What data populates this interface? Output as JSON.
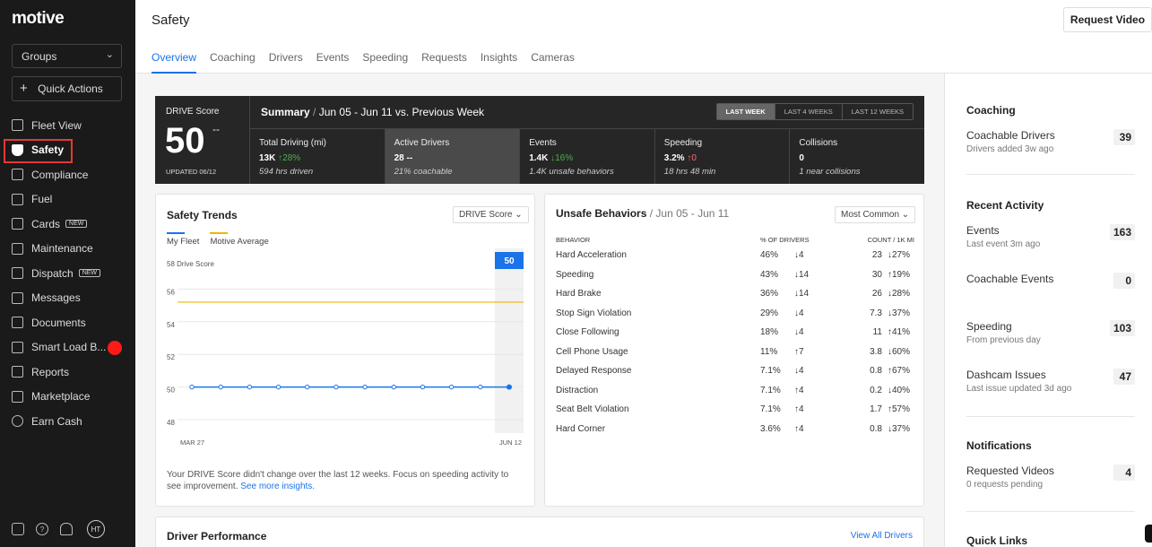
{
  "app": {
    "logo": "motive"
  },
  "sidebar": {
    "groups_label": "Groups",
    "quick_actions_label": "Quick Actions",
    "items": [
      {
        "label": "Fleet View",
        "icon": "map-icon"
      },
      {
        "label": "Safety",
        "icon": "shield-icon",
        "active": true
      },
      {
        "label": "Compliance",
        "icon": "document-icon"
      },
      {
        "label": "Fuel",
        "icon": "fuel-icon"
      },
      {
        "label": "Cards",
        "icon": "card-icon",
        "badge": "NEW"
      },
      {
        "label": "Maintenance",
        "icon": "wrench-icon"
      },
      {
        "label": "Dispatch",
        "icon": "location-pin-icon",
        "badge": "NEW"
      },
      {
        "label": "Messages",
        "icon": "chat-icon"
      },
      {
        "label": "Documents",
        "icon": "file-icon"
      },
      {
        "label": "Smart Load B...",
        "icon": "truck-icon",
        "dot": true
      },
      {
        "label": "Reports",
        "icon": "bar-chart-icon"
      },
      {
        "label": "Marketplace",
        "icon": "layers-icon"
      },
      {
        "label": "Earn Cash",
        "icon": "dollar-icon"
      }
    ],
    "footer": {
      "avatar_initials": "HT",
      "help_glyph": "?"
    }
  },
  "header": {
    "title": "Safety",
    "request_video_label": "Request Video",
    "tabs": [
      "Overview",
      "Coaching",
      "Drivers",
      "Events",
      "Speeding",
      "Requests",
      "Insights",
      "Cameras"
    ],
    "active_tab": "Overview"
  },
  "banner": {
    "score_label": "DRIVE Score",
    "score_value": "50",
    "score_change": "--",
    "updated": "UPDATED 06/12",
    "summary_title": "Summary",
    "summary_range": "Jun 05 - Jun 11 vs. Previous Week",
    "ranges": [
      "LAST WEEK",
      "LAST 4 WEEKS",
      "LAST 12 WEEKS"
    ],
    "metrics": [
      {
        "label": "Total Driving (mi)",
        "value": "13K",
        "delta": "↑28%",
        "sub": "594 hrs driven"
      },
      {
        "label": "Active Drivers",
        "value": "28",
        "delta": "--",
        "sub": "21% coachable"
      },
      {
        "label": "Events",
        "value": "1.4K",
        "delta": "↓16%",
        "sub": "1.4K unsafe behaviors"
      },
      {
        "label": "Speeding",
        "value": "3.2%",
        "delta": "↑0",
        "sub": "18 hrs 48 min"
      },
      {
        "label": "Collisions",
        "value": "0",
        "delta": "",
        "sub": "1 near collisions"
      }
    ]
  },
  "trends": {
    "title": "Safety Trends",
    "dropdown": "DRIVE Score",
    "legend": [
      {
        "name": "My Fleet",
        "color": "#1a73e8"
      },
      {
        "name": "Motive Average",
        "color": "#f0b400"
      }
    ],
    "ylabel_top": "58 Drive Score",
    "current_badge": "50",
    "note": "Your DRIVE Score didn't change over the last 12 weeks. Focus on speeding activity to see improvement.",
    "note_link": "See more insights."
  },
  "chart_data": {
    "type": "line",
    "x": [
      "MAR 27",
      "",
      "",
      "",
      "",
      "",
      "",
      "",
      "",
      "",
      "",
      "JUN 12"
    ],
    "series": [
      {
        "name": "My Fleet",
        "values": [
          50,
          50,
          50,
          50,
          50,
          50,
          50,
          50,
          50,
          50,
          50,
          50
        ]
      },
      {
        "name": "Motive Average",
        "values": [
          55.2,
          55.2,
          55.2,
          55.2,
          55.2,
          55.2,
          55.2,
          55.2,
          55.2,
          55.2,
          55.2,
          55.2
        ]
      }
    ],
    "yticks": [
      48,
      50,
      52,
      54,
      56
    ],
    "ylim": [
      48,
      58
    ],
    "grid": true
  },
  "unsafe": {
    "title": "Unsafe Behaviors",
    "range": "Jun 05 - Jun 11",
    "dropdown": "Most Common",
    "headers": [
      "BEHAVIOR",
      "% OF DRIVERS",
      "COUNT / 1K MI"
    ],
    "rows": [
      {
        "name": "Hard Acceleration",
        "pct": "46%",
        "pct_delta": "4",
        "pct_dir": "down",
        "count": "23",
        "count_delta": "27%",
        "count_dir": "down"
      },
      {
        "name": "Speeding",
        "pct": "43%",
        "pct_delta": "14",
        "pct_dir": "down",
        "count": "30",
        "count_delta": "19%",
        "count_dir": "up"
      },
      {
        "name": "Hard Brake",
        "pct": "36%",
        "pct_delta": "14",
        "pct_dir": "down",
        "count": "26",
        "count_delta": "28%",
        "count_dir": "down"
      },
      {
        "name": "Stop Sign Violation",
        "pct": "29%",
        "pct_delta": "4",
        "pct_dir": "down",
        "count": "7.3",
        "count_delta": "37%",
        "count_dir": "down"
      },
      {
        "name": "Close Following",
        "pct": "18%",
        "pct_delta": "4",
        "pct_dir": "down",
        "count": "11",
        "count_delta": "41%",
        "count_dir": "up"
      },
      {
        "name": "Cell Phone Usage",
        "pct": "11%",
        "pct_delta": "7",
        "pct_dir": "up",
        "count": "3.8",
        "count_delta": "60%",
        "count_dir": "down"
      },
      {
        "name": "Delayed Response",
        "pct": "7.1%",
        "pct_delta": "4",
        "pct_dir": "down",
        "count": "0.8",
        "count_delta": "67%",
        "count_dir": "up"
      },
      {
        "name": "Distraction",
        "pct": "7.1%",
        "pct_delta": "4",
        "pct_dir": "up",
        "count": "0.2",
        "count_delta": "40%",
        "count_dir": "down"
      },
      {
        "name": "Seat Belt Violation",
        "pct": "7.1%",
        "pct_delta": "4",
        "pct_dir": "up",
        "count": "1.7",
        "count_delta": "57%",
        "count_dir": "up"
      },
      {
        "name": "Hard Corner",
        "pct": "3.6%",
        "pct_delta": "4",
        "pct_dir": "up",
        "count": "0.8",
        "count_delta": "37%",
        "count_dir": "down"
      }
    ]
  },
  "driver_performance": {
    "title": "Driver Performance",
    "link": "View All Drivers"
  },
  "right_panel": {
    "coaching": {
      "title": "Coaching",
      "label": "Coachable Drivers",
      "sub": "Drivers added 3w ago",
      "value": "39"
    },
    "recent_activity": {
      "title": "Recent Activity",
      "events": {
        "label": "Events",
        "sub": "Last event 3m ago",
        "value": "163"
      },
      "coachable_events": {
        "label": "Coachable Events",
        "value": "0"
      },
      "speeding": {
        "label": "Speeding",
        "sub": "From previous day",
        "value": "103"
      },
      "dashcam": {
        "label": "Dashcam Issues",
        "sub": "Last issue updated 3d ago",
        "value": "47"
      }
    },
    "notifications": {
      "title": "Notifications",
      "label": "Requested Videos",
      "sub": "0 requests pending",
      "value": "4"
    },
    "quick_links": {
      "title": "Quick Links"
    }
  }
}
